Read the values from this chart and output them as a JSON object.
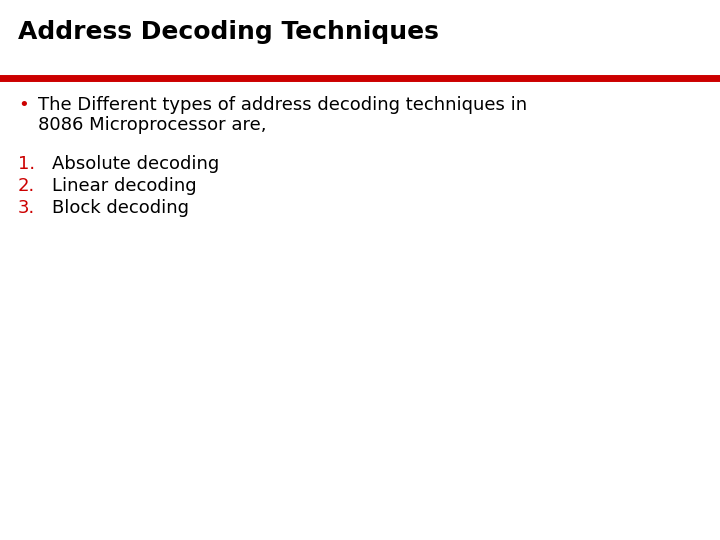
{
  "title": "Address Decoding Techniques",
  "title_color": "#000000",
  "title_fontsize": 18,
  "line_color": "#cc0000",
  "line_thickness": 5,
  "background_color": "#ffffff",
  "bullet_text_line1": "The Different types of address decoding techniques in",
  "bullet_text_line2": "8086 Microprocessor are,",
  "bullet_color": "#cc0000",
  "bullet_text_color": "#000000",
  "bullet_fontsize": 13,
  "items": [
    "Absolute decoding",
    "Linear decoding",
    "Block decoding"
  ],
  "item_numbers": [
    "1.",
    "2.",
    "3."
  ],
  "item_number_color": "#cc0000",
  "item_text_color": "#000000",
  "item_fontsize": 13,
  "font_family": "DejaVu Sans"
}
